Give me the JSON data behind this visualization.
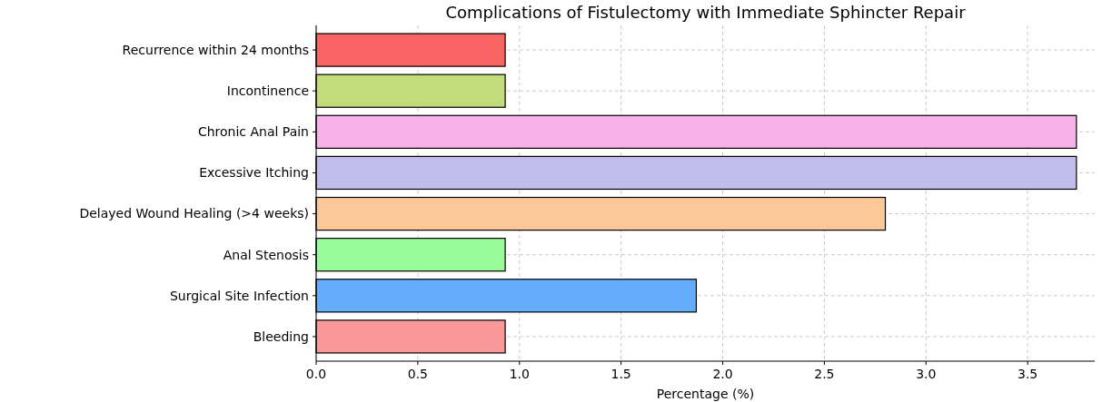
{
  "chart_data": {
    "type": "bar",
    "orientation": "horizontal",
    "title": "Complications of Fistulectomy with Immediate Sphincter Repair",
    "xlabel": "Percentage (%)",
    "categories": [
      "Recurrence within 24 months",
      "Incontinence",
      "Chronic Anal Pain",
      "Excessive Itching",
      "Delayed Wound Healing (>4 weeks)",
      "Anal Stenosis",
      "Surgical Site Infection",
      "Bleeding"
    ],
    "values": [
      0.93,
      0.93,
      3.74,
      3.74,
      2.8,
      0.93,
      1.87,
      0.93
    ],
    "colors": [
      "#f86464",
      "#c2dc7c",
      "#f8b0e8",
      "#c0bcec",
      "#fcc898",
      "#98fc98",
      "#64acfc",
      "#f89898"
    ],
    "xlim": [
      0,
      3.83
    ],
    "xticks": [
      {
        "value": 0,
        "label": "0.0"
      },
      {
        "value": 0.5,
        "label": "0.5"
      },
      {
        "value": 1,
        "label": "1.0"
      },
      {
        "value": 1.5,
        "label": "1.5"
      },
      {
        "value": 2,
        "label": "2.0"
      },
      {
        "value": 2.5,
        "label": "2.5"
      },
      {
        "value": 3,
        "label": "3.0"
      },
      {
        "value": 3.5,
        "label": "3.5"
      }
    ],
    "grid": true
  }
}
